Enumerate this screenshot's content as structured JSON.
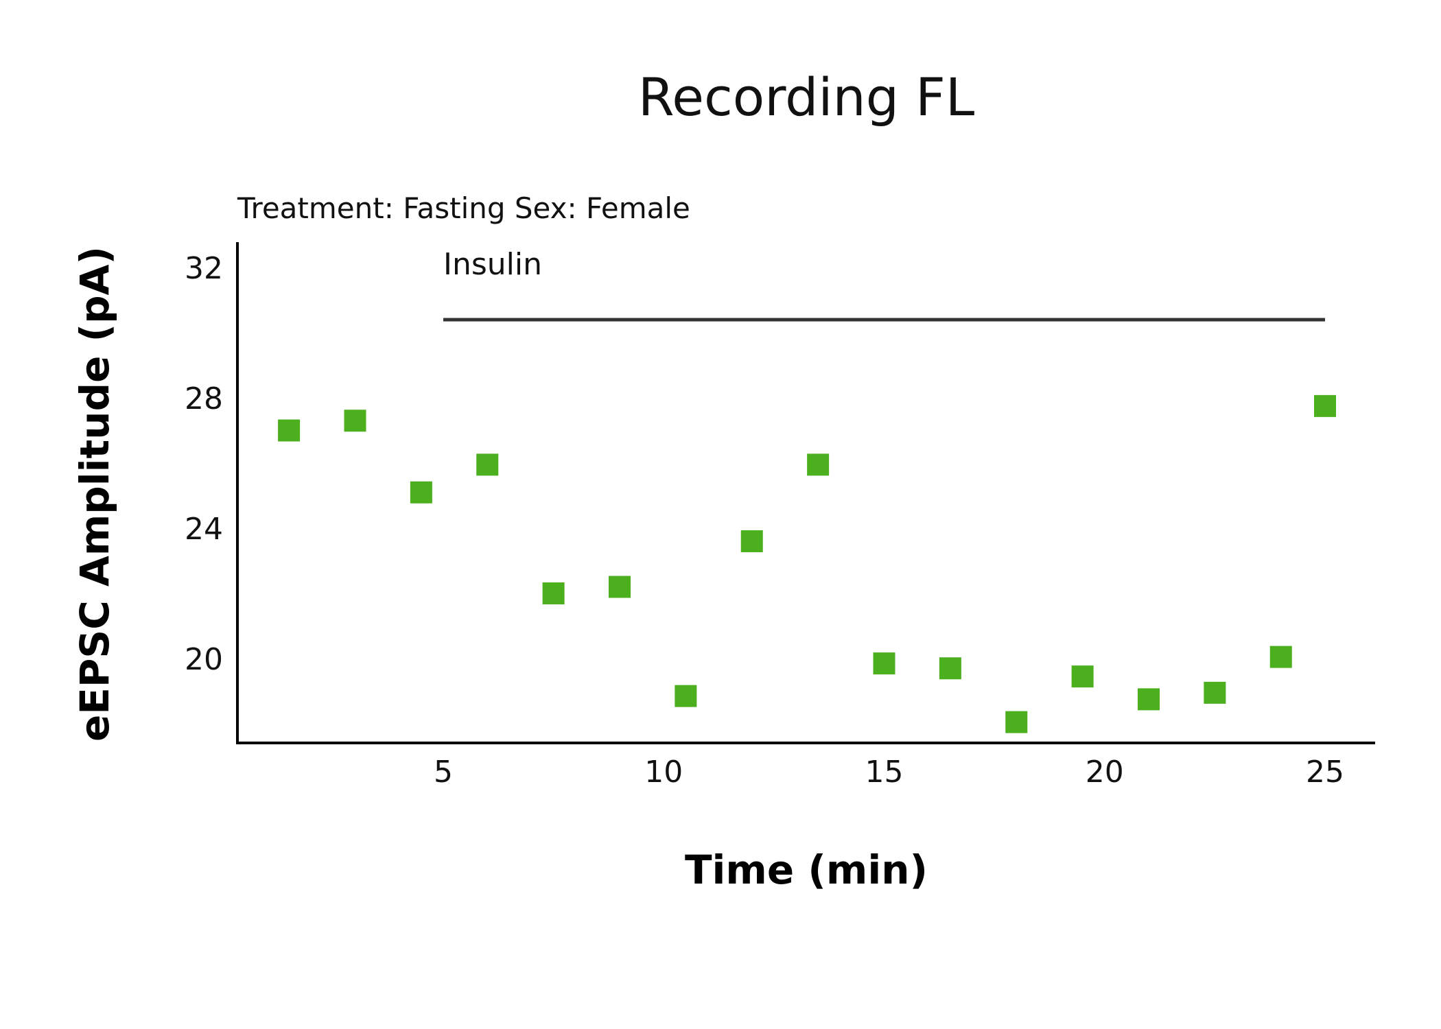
{
  "chart_data": {
    "type": "scatter",
    "title": "Recording FL",
    "subtitle": "Treatment: Fasting  Sex: Female",
    "xlabel": "Time (min)",
    "ylabel": "eEPSC Amplitude (pA)",
    "xlim": [
      0.3,
      26.2
    ],
    "ylim": [
      17.5,
      32.4
    ],
    "xticks": [
      5,
      10,
      15,
      20,
      25
    ],
    "yticks": [
      20,
      24,
      28,
      32
    ],
    "annotation": {
      "label": "Insulin",
      "x_start": 5,
      "x_end": 25,
      "y": 30.4
    },
    "marker_color": "#4caf1e",
    "series": [
      {
        "name": "eEPSC",
        "x": [
          1.5,
          3,
          4.5,
          6,
          7.5,
          9,
          10.5,
          12,
          13.5,
          15,
          16.5,
          18,
          19.5,
          21,
          22.5,
          24,
          25
        ],
        "y": [
          27.0,
          27.3,
          25.1,
          25.95,
          22.0,
          22.2,
          18.85,
          23.6,
          25.95,
          19.85,
          19.7,
          18.05,
          19.45,
          18.75,
          18.95,
          20.05,
          27.75
        ]
      }
    ]
  }
}
